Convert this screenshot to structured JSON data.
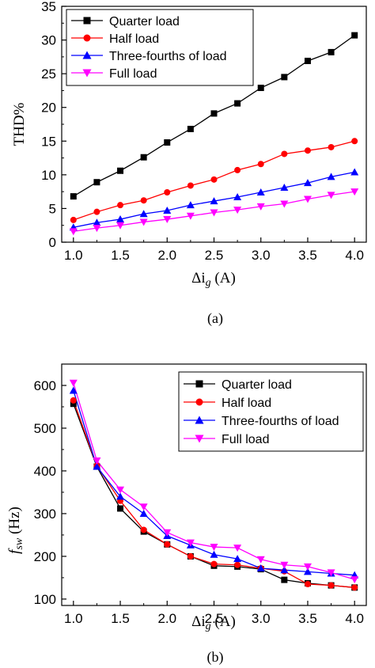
{
  "chart_data": [
    {
      "type": "line",
      "panel_label": "(a)",
      "ylabel": "THD%",
      "xlabel_main": "Δi",
      "xlabel_sub": "g",
      "xlabel_unit": " (A)",
      "xlim": [
        0.875,
        4.125
      ],
      "ylim": [
        0,
        35
      ],
      "xticks": [
        "1.0",
        "1.5",
        "2.0",
        "2.5",
        "3.0",
        "3.5",
        "4.0"
      ],
      "yticks": [
        "0",
        "5",
        "10",
        "15",
        "20",
        "25",
        "30",
        "35"
      ],
      "grid": false,
      "legend_position": "top-left",
      "x": [
        1.0,
        1.25,
        1.5,
        1.75,
        2.0,
        2.25,
        2.5,
        2.75,
        3.0,
        3.25,
        3.5,
        3.75,
        4.0
      ],
      "series": [
        {
          "name": "Quarter load",
          "color": "#000000",
          "marker": "square",
          "values": [
            6.8,
            8.9,
            10.6,
            12.6,
            14.8,
            16.8,
            19.1,
            20.6,
            22.9,
            24.5,
            26.9,
            28.2,
            30.7
          ]
        },
        {
          "name": "Half load",
          "color": "#ff0000",
          "marker": "circle",
          "values": [
            3.3,
            4.5,
            5.5,
            6.2,
            7.4,
            8.4,
            9.3,
            10.7,
            11.6,
            13.1,
            13.6,
            14.1,
            15.0
          ]
        },
        {
          "name": "Three-fourths of load",
          "color": "#0000ff",
          "marker": "triangle-up",
          "values": [
            2.2,
            2.9,
            3.4,
            4.2,
            4.7,
            5.5,
            6.1,
            6.7,
            7.4,
            8.1,
            8.8,
            9.7,
            10.4
          ]
        },
        {
          "name": "Full load",
          "color": "#ff00ff",
          "marker": "triangle-down",
          "values": [
            1.6,
            2.1,
            2.5,
            3.0,
            3.4,
            3.9,
            4.4,
            4.8,
            5.3,
            5.7,
            6.4,
            7.0,
            7.5
          ]
        }
      ]
    },
    {
      "type": "line",
      "panel_label": "(b)",
      "ylabel_main": "f",
      "ylabel_sub": "sw",
      "ylabel_unit": " (Hz)",
      "xlabel_main": "Δi",
      "xlabel_sub": "g",
      "xlabel_unit": " (A)",
      "xlim": [
        0.875,
        4.125
      ],
      "ylim": [
        85,
        650
      ],
      "xticks": [
        "1.0",
        "1.5",
        "2.0",
        "2.5",
        "3.0",
        "3.5",
        "4.0"
      ],
      "yticks": [
        "100",
        "200",
        "300",
        "400",
        "500",
        "600"
      ],
      "grid": false,
      "legend_position": "top-right",
      "x": [
        1.0,
        1.25,
        1.5,
        1.75,
        2.0,
        2.25,
        2.5,
        2.75,
        3.0,
        3.25,
        3.5,
        3.75,
        4.0
      ],
      "series": [
        {
          "name": "Quarter load",
          "color": "#000000",
          "marker": "square",
          "values": [
            557,
            410,
            312,
            258,
            228,
            200,
            178,
            176,
            170,
            145,
            137,
            132,
            127
          ]
        },
        {
          "name": "Half load",
          "color": "#ff0000",
          "marker": "circle",
          "values": [
            565,
            412,
            330,
            262,
            228,
            200,
            182,
            180,
            172,
            165,
            135,
            132,
            127
          ]
        },
        {
          "name": "Three-fourths of load",
          "color": "#0000ff",
          "marker": "triangle-up",
          "values": [
            588,
            410,
            340,
            300,
            248,
            226,
            204,
            194,
            172,
            168,
            164,
            160,
            156
          ]
        },
        {
          "name": "Full load",
          "color": "#ff00ff",
          "marker": "triangle-down",
          "values": [
            606,
            424,
            356,
            316,
            256,
            232,
            222,
            220,
            193,
            180,
            176,
            162,
            146
          ]
        }
      ]
    }
  ]
}
